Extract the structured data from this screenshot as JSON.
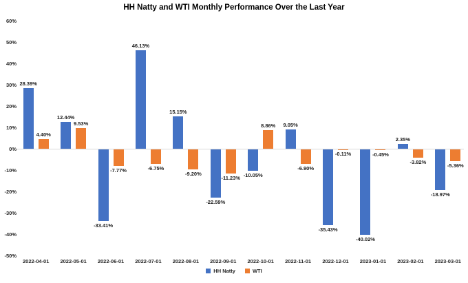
{
  "chart_data": {
    "type": "bar",
    "title": "HH Natty and WTI Monthly Performance Over the Last Year",
    "categories": [
      "2022-04-01",
      "2022-05-01",
      "2022-06-01",
      "2022-07-01",
      "2022-08-01",
      "2022-09-01",
      "2022-10-01",
      "2022-11-01",
      "2022-12-01",
      "2023-01-01",
      "2023-02-01",
      "2023-03-01"
    ],
    "series": [
      {
        "name": "HH Natty",
        "color": "#4472C4",
        "values": [
          28.39,
          12.44,
          -33.41,
          46.13,
          15.15,
          -22.59,
          -10.05,
          9.05,
          -35.43,
          -40.02,
          2.35,
          -18.97
        ],
        "labels": [
          "28.39%",
          "12.44%",
          "-33.41%",
          "46.13%",
          "15.15%",
          "-22.59%",
          "-10.05%",
          "9.05%",
          "-35.43%",
          "-40.02%",
          "2.35%",
          "-18.97%"
        ]
      },
      {
        "name": "WTI",
        "color": "#ED7D31",
        "values": [
          4.4,
          9.53,
          -7.77,
          -6.75,
          -9.2,
          -11.23,
          8.86,
          -6.9,
          -0.11,
          -0.45,
          -3.82,
          -5.36
        ],
        "labels": [
          "4.40%",
          "9.53%",
          "-7.77%",
          "-6.75%",
          "-9.20%",
          "-11.23%",
          "8.86%",
          "-6.90%",
          "-0.11%",
          "-0.45%",
          "-3.82%",
          "-5.36%"
        ]
      }
    ],
    "ylim": [
      -50,
      60
    ],
    "y_ticks": [
      {
        "value": 60,
        "label": "60%"
      },
      {
        "value": 50,
        "label": "50%"
      },
      {
        "value": 40,
        "label": "40%"
      },
      {
        "value": 30,
        "label": "30%"
      },
      {
        "value": 20,
        "label": "20%"
      },
      {
        "value": 10,
        "label": "10%"
      },
      {
        "value": 0,
        "label": "0%"
      },
      {
        "value": -10,
        "label": "-10%"
      },
      {
        "value": -20,
        "label": "-20%"
      },
      {
        "value": -30,
        "label": "-30%"
      },
      {
        "value": -40,
        "label": "-40%"
      },
      {
        "value": -50,
        "label": "-50%"
      }
    ],
    "grid": false,
    "data_labels": true,
    "legend_position": "bottom",
    "zero_line_color": "#d9d9d9",
    "background_color": "#ffffff"
  }
}
